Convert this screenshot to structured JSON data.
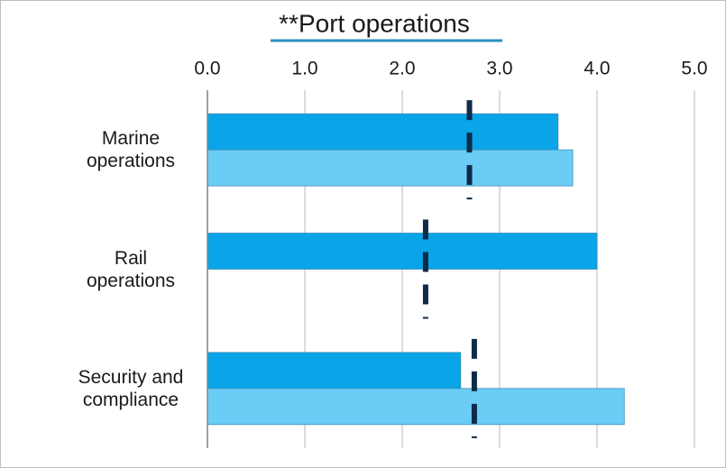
{
  "chart_data": {
    "type": "bar",
    "orientation": "horizontal",
    "title": "**Port operations",
    "categories": [
      "Marine operations",
      "Rail operations",
      "Security and compliance"
    ],
    "series": [
      {
        "color": "#0aa4e8",
        "values": [
          3.6,
          4.0,
          2.6
        ]
      },
      {
        "color": "#6bcdf6",
        "values": [
          3.75,
          null,
          4.28
        ]
      }
    ],
    "markers": {
      "color": "#0e2b47",
      "values": [
        2.69,
        2.24,
        2.74
      ]
    },
    "xlim": [
      0,
      5
    ],
    "xticks": [
      {
        "value": 0,
        "label": "0.0"
      },
      {
        "value": 1,
        "label": "1.0"
      },
      {
        "value": 2,
        "label": "2.0"
      },
      {
        "value": 3,
        "label": "3.0"
      },
      {
        "value": 4,
        "label": "4.0"
      },
      {
        "value": 5,
        "label": "5.0"
      }
    ],
    "grid": true
  }
}
